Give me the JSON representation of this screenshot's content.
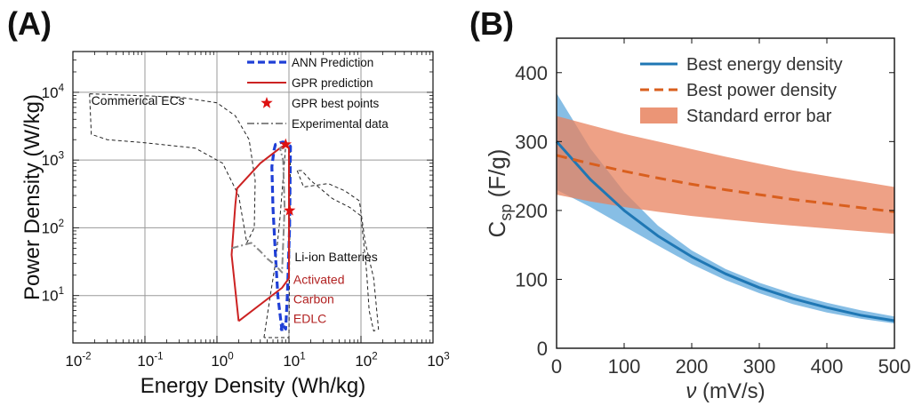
{
  "panels": {
    "a_label": "(A)",
    "b_label": "(B)"
  },
  "chart_data": [
    {
      "panel": "(A)",
      "type": "line",
      "xlabel": "Energy Density (Wh/kg)",
      "ylabel": "Power Density (W/kg)",
      "xscale": "log",
      "yscale": "log",
      "xlim": [
        0.01,
        1000
      ],
      "ylim": [
        2,
        40000
      ],
      "grid": true,
      "x_ticks": [
        0.01,
        0.1,
        1,
        10,
        100,
        1000
      ],
      "x_tick_labels": [
        {
          "base": "10",
          "exp": "-2"
        },
        {
          "base": "10",
          "exp": "-1"
        },
        {
          "base": "10",
          "exp": "0"
        },
        {
          "base": "10",
          "exp": "1"
        },
        {
          "base": "10",
          "exp": "2"
        },
        {
          "base": "10",
          "exp": "3"
        }
      ],
      "y_ticks": [
        10,
        100,
        1000,
        10000
      ],
      "y_tick_labels": [
        {
          "base": "10",
          "exp": "1"
        },
        {
          "base": "10",
          "exp": "2"
        },
        {
          "base": "10",
          "exp": "3"
        },
        {
          "base": "10",
          "exp": "4"
        }
      ],
      "legend_position": "top-right",
      "legend": [
        {
          "label": "ANN Prediction",
          "style": "dashed",
          "color": "#1f3fd6"
        },
        {
          "label": "GPR prediction",
          "style": "solid",
          "color": "#cc2222"
        },
        {
          "label": "GPR best points",
          "style": "star",
          "color": "#dd1111"
        },
        {
          "label": "Experimental data",
          "style": "dashdot",
          "color": "#888888"
        }
      ],
      "annotations": {
        "commercial": "Commerical ECs",
        "liion": "Li-ion Batteries",
        "activated": [
          "Activated",
          "Carbon",
          "EDLC"
        ]
      },
      "regions": [
        {
          "name": "Commerical ECs",
          "color": "#222222",
          "points": [
            [
              0.017,
              9500
            ],
            [
              0.3,
              8500
            ],
            [
              1.0,
              7000
            ],
            [
              1.8,
              4500
            ],
            [
              2.8,
              2000
            ],
            [
              3.4,
              500
            ],
            [
              3.3,
              100
            ],
            [
              2.6,
              60
            ],
            [
              2.0,
              300
            ],
            [
              1.2,
              900
            ],
            [
              0.5,
              1500
            ],
            [
              0.1,
              1800
            ],
            [
              0.03,
              2000
            ],
            [
              0.018,
              2400
            ],
            [
              0.017,
              9500
            ]
          ]
        },
        {
          "name": "Li-ion Batteries",
          "color": "#222222",
          "points": [
            [
              13,
              700
            ],
            [
              16,
              400
            ],
            [
              35,
              450
            ],
            [
              60,
              350
            ],
            [
              95,
              250
            ],
            [
              115,
              60
            ],
            [
              150,
              18
            ],
            [
              175,
              3.2
            ],
            [
              150,
              3.0
            ],
            [
              130,
              6
            ],
            [
              120,
              22
            ],
            [
              105,
              90
            ],
            [
              100,
              150
            ],
            [
              70,
              200
            ],
            [
              40,
              270
            ],
            [
              20,
              500
            ],
            [
              15,
              700
            ],
            [
              13,
              700
            ]
          ]
        },
        {
          "name": "Activated Carbon EDLC",
          "color": "#222222",
          "points": [
            [
              4.5,
              2.4
            ],
            [
              5.5,
              10
            ],
            [
              6.5,
              30
            ],
            [
              7.5,
              140
            ],
            [
              9.0,
              1600
            ],
            [
              10.5,
              1500
            ],
            [
              10.0,
              2.4
            ],
            [
              4.5,
              2.4
            ]
          ]
        }
      ],
      "series": [
        {
          "name": "ANN Prediction",
          "color": "#1f3fd6",
          "style": "dashed",
          "x": [
            8.0,
            7.0,
            6.5,
            6.0,
            5.8,
            6.2,
            6.5,
            7.5,
            8.3,
            10.5,
            10.2,
            9.5,
            9.0,
            8.5,
            8.3,
            7.8,
            8.0
          ],
          "y": [
            3.0,
            10,
            40,
            200,
            800,
            1400,
            1700,
            1800,
            1850,
            1600,
            100,
            10,
            3.2,
            3.5,
            4.0,
            3.2,
            3.0
          ]
        },
        {
          "name": "GPR prediction",
          "color": "#cc2222",
          "style": "solid",
          "x": [
            2.0,
            1.6,
            1.8,
            1.9,
            4.0,
            7.5,
            9.0,
            10.0,
            10.0,
            8.0,
            2.0
          ],
          "y": [
            4.2,
            40,
            220,
            380,
            900,
            1500,
            1700,
            1500,
            18,
            13,
            4.2
          ]
        },
        {
          "name": "Experimental data",
          "color": "#888888",
          "style": "dashdot",
          "x": [
            1.6,
            3.0,
            4.0,
            5.0,
            6.5,
            8.0,
            8.7,
            8.3,
            7.5,
            9.0
          ],
          "y": [
            50,
            60,
            45,
            35,
            28,
            22,
            200,
            1000,
            1500,
            1500
          ]
        },
        {
          "name": "GPR best points",
          "color": "#dd1111",
          "style": "star",
          "x": [
            9.0,
            10.2
          ],
          "y": [
            1700,
            180
          ]
        }
      ]
    },
    {
      "panel": "(B)",
      "type": "line",
      "xlabel_symbol": "ν",
      "xlabel_unit": "(mV/s)",
      "ylabel_main": "C",
      "ylabel_sub": "sp",
      "ylabel_unit": "(F/g)",
      "xlim": [
        0,
        500
      ],
      "ylim": [
        0,
        450
      ],
      "x_ticks": [
        0,
        100,
        200,
        300,
        400,
        500
      ],
      "y_ticks": [
        0,
        100,
        200,
        300,
        400
      ],
      "grid": false,
      "legend_position": "top-right",
      "legend": [
        {
          "label": "Best energy density",
          "style": "solid",
          "color": "#1f77b4"
        },
        {
          "label": "Best power density",
          "style": "dashed",
          "color": "#d95f1e"
        },
        {
          "label": "Standard error bar",
          "style": "band",
          "color": "#e8825e"
        }
      ],
      "series": [
        {
          "name": "Best energy density",
          "color": "#1f77b4",
          "style": "solid",
          "x": [
            0,
            50,
            100,
            150,
            200,
            250,
            300,
            350,
            400,
            450,
            500
          ],
          "y": [
            300,
            245,
            200,
            163,
            133,
            108,
            88,
            72,
            59,
            48,
            40
          ],
          "band_lower": [
            230,
            205,
            177,
            149,
            122,
            99,
            80,
            64,
            52,
            43,
            36
          ],
          "band_upper": [
            370,
            290,
            227,
            178,
            142,
            115,
            95,
            79,
            66,
            55,
            46
          ],
          "band_color": "#5fa8dc"
        },
        {
          "name": "Best power density",
          "color": "#d95f1e",
          "style": "dashed",
          "x": [
            0,
            50,
            100,
            150,
            200,
            250,
            300,
            350,
            400,
            450,
            500
          ],
          "y": [
            280,
            268,
            257,
            247,
            238,
            230,
            223,
            216,
            210,
            204,
            198
          ],
          "band_lower": [
            223,
            213,
            205,
            198,
            192,
            187,
            182,
            178,
            174,
            170,
            166
          ],
          "band_upper": [
            337,
            324,
            311,
            300,
            289,
            278,
            268,
            258,
            250,
            242,
            234
          ],
          "band_color": "#e8825e"
        }
      ]
    }
  ]
}
